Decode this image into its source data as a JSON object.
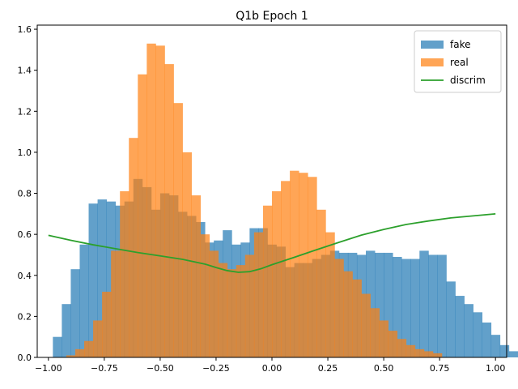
{
  "chart_data": {
    "type": "histogram",
    "title": "Q1b Epoch 1",
    "xlabel": "",
    "ylabel": "",
    "xlim": [
      -1.05,
      1.05
    ],
    "ylim": [
      0,
      1.62
    ],
    "xticks": [
      -1.0,
      -0.75,
      -0.5,
      -0.25,
      0.0,
      0.25,
      0.5,
      0.75,
      1.0
    ],
    "xtick_labels": [
      "−1.00",
      "−0.75",
      "−0.50",
      "−0.25",
      "0.00",
      "0.25",
      "0.50",
      "0.75",
      "1.00"
    ],
    "yticks": [
      0.0,
      0.2,
      0.4,
      0.6,
      0.8,
      1.0,
      1.2,
      1.4,
      1.6
    ],
    "ytick_labels": [
      "0.0",
      "0.2",
      "0.4",
      "0.6",
      "0.8",
      "1.0",
      "1.2",
      "1.4",
      "1.6"
    ],
    "legend_position": "top-right",
    "series": [
      {
        "name": "fake",
        "kind": "hist",
        "color": "#1f77b4",
        "alpha": 0.7,
        "bin_start": -0.98,
        "bin_width": 0.04,
        "values": [
          0.1,
          0.26,
          0.43,
          0.55,
          0.75,
          0.77,
          0.76,
          0.74,
          0.76,
          0.87,
          0.83,
          0.72,
          0.8,
          0.79,
          0.71,
          0.69,
          0.66,
          0.56,
          0.57,
          0.62,
          0.55,
          0.56,
          0.63,
          0.63,
          0.55,
          0.54,
          0.44,
          0.46,
          0.46,
          0.48,
          0.5,
          0.52,
          0.51,
          0.51,
          0.5,
          0.52,
          0.51,
          0.51,
          0.49,
          0.48,
          0.48,
          0.52,
          0.5,
          0.5,
          0.37,
          0.3,
          0.26,
          0.22,
          0.17,
          0.11,
          0.06,
          0.03
        ]
      },
      {
        "name": "real",
        "kind": "hist",
        "color": "#ff7f0e",
        "alpha": 0.7,
        "bin_start": -0.92,
        "bin_width": 0.04,
        "values": [
          0.01,
          0.04,
          0.08,
          0.18,
          0.32,
          0.52,
          0.81,
          1.07,
          1.38,
          1.53,
          1.52,
          1.43,
          1.24,
          1.0,
          0.79,
          0.6,
          0.52,
          0.46,
          0.43,
          0.45,
          0.5,
          0.61,
          0.74,
          0.81,
          0.86,
          0.91,
          0.9,
          0.88,
          0.72,
          0.61,
          0.48,
          0.42,
          0.38,
          0.31,
          0.24,
          0.18,
          0.13,
          0.09,
          0.06,
          0.04,
          0.03,
          0.02
        ]
      },
      {
        "name": "discrim",
        "kind": "line",
        "color": "#2ca02c",
        "x": [
          -1.0,
          -0.9,
          -0.8,
          -0.7,
          -0.6,
          -0.5,
          -0.4,
          -0.3,
          -0.25,
          -0.2,
          -0.15,
          -0.1,
          -0.05,
          0.0,
          0.1,
          0.2,
          0.3,
          0.4,
          0.5,
          0.6,
          0.7,
          0.8,
          0.9,
          1.0
        ],
        "y": [
          0.595,
          0.571,
          0.549,
          0.53,
          0.511,
          0.495,
          0.478,
          0.455,
          0.438,
          0.423,
          0.415,
          0.418,
          0.432,
          0.452,
          0.488,
          0.525,
          0.561,
          0.596,
          0.624,
          0.648,
          0.665,
          0.68,
          0.69,
          0.7
        ]
      }
    ]
  }
}
